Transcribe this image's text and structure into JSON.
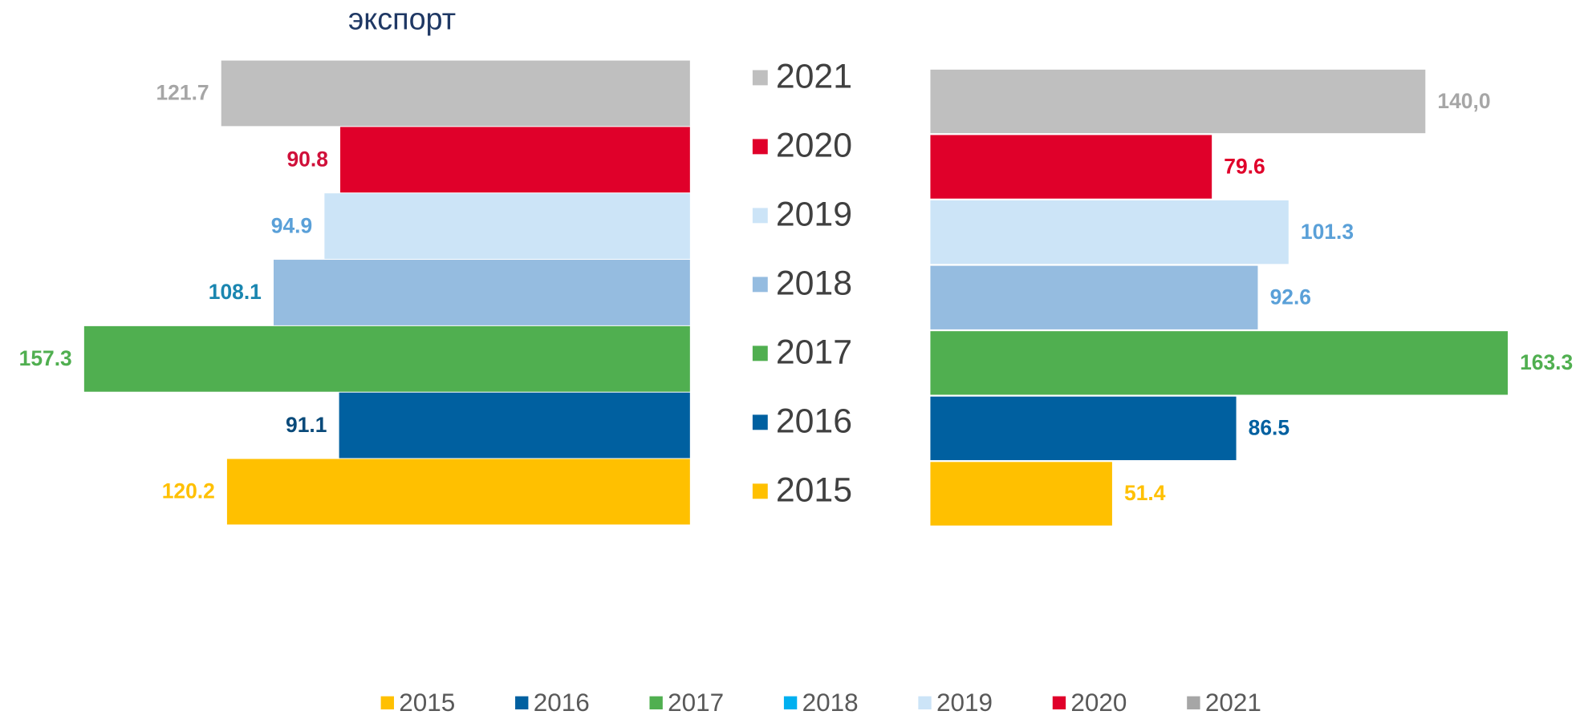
{
  "chart_data": [
    {
      "type": "bar",
      "title": "экспорт",
      "direction": "left",
      "categories": [
        "2021",
        "2020",
        "2019",
        "2018",
        "2017",
        "2016",
        "2015"
      ],
      "values": [
        121.7,
        90.8,
        94.9,
        108.1,
        157.3,
        91.1,
        120.2
      ],
      "colors": [
        "#bfbfbf",
        "#e0002a",
        "#cce4f7",
        "#95bce0",
        "#50af50",
        "#0060a0",
        "#ffc000"
      ],
      "label_colors": [
        "#a6a6a6",
        "#d0103a",
        "#5aa0d8",
        "#1a86b0",
        "#50af50",
        "#0a4a7a",
        "#ffc000"
      ],
      "xlim": [
        0,
        160
      ]
    },
    {
      "type": "bar",
      "direction": "right",
      "values": [
        140.0,
        79.6,
        101.3,
        92.6,
        163.3,
        86.5,
        51.4
      ],
      "value_labels": [
        "140,0",
        "79.6",
        "101.3",
        "92.6",
        "163.3",
        "86.5",
        "51.4"
      ],
      "colors": [
        "#bfbfbf",
        "#e0002a",
        "#cce4f7",
        "#95bce0",
        "#50af50",
        "#0060a0",
        "#ffc000"
      ],
      "label_colors": [
        "#a6a6a6",
        "#e0002a",
        "#5aa0d8",
        "#5aa0d8",
        "#50af50",
        "#0060a0",
        "#ffc000"
      ],
      "xlim": [
        0,
        170
      ]
    }
  ],
  "legend": {
    "items": [
      {
        "name": "2015",
        "color": "#ffc000"
      },
      {
        "name": "2016",
        "color": "#0060a0"
      },
      {
        "name": "2017",
        "color": "#50af50"
      },
      {
        "name": "2018",
        "color": "#00b0f0"
      },
      {
        "name": "2019",
        "color": "#cce4f7"
      },
      {
        "name": "2020",
        "color": "#e0002a"
      },
      {
        "name": "2021",
        "color": "#a6a6a6"
      }
    ]
  }
}
